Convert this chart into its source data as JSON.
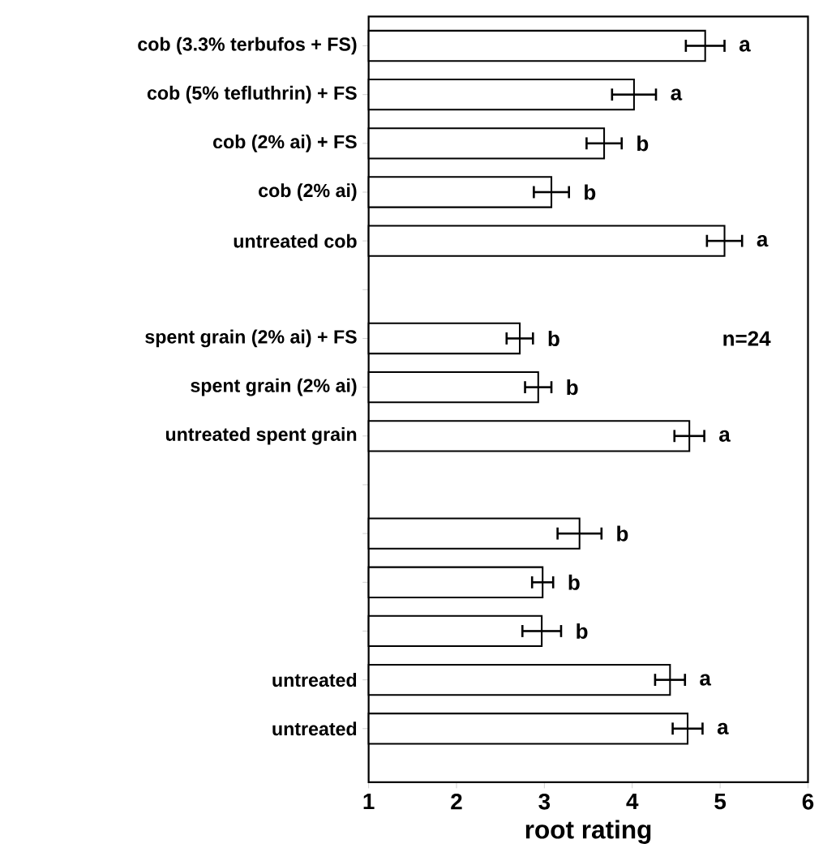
{
  "chart_data": {
    "type": "bar",
    "orientation": "horizontal",
    "xlabel": "root rating",
    "categories": [
      "cob (3.3% terbufos + FS)",
      "cob (5% tefluthrin) + FS",
      "cob (2% ai) + FS",
      "cob (2% ai)",
      "untreated cob",
      null,
      "spent grain (2% ai) + FS",
      "spent grain (2% ai)",
      "untreated spent grain",
      null,
      null,
      null,
      null,
      "untreated",
      "untreated"
    ],
    "values": [
      4.83,
      4.02,
      3.68,
      3.08,
      5.05,
      null,
      2.72,
      2.93,
      4.65,
      null,
      3.4,
      2.98,
      2.97,
      4.43,
      4.63
    ],
    "errors": [
      0.22,
      0.25,
      0.2,
      0.2,
      0.2,
      null,
      0.15,
      0.15,
      0.17,
      null,
      0.25,
      0.12,
      0.22,
      0.17,
      0.17
    ],
    "value_labels": [
      "a",
      "a",
      "b",
      "b",
      "a",
      null,
      "b",
      "b",
      "a",
      null,
      "b",
      "b",
      "b",
      "a",
      "a"
    ],
    "color": "#000000",
    "xlim": [
      1,
      6
    ],
    "xticks": [
      1,
      2,
      3,
      4,
      5,
      6
    ],
    "annotations": [
      "n=24"
    ]
  }
}
